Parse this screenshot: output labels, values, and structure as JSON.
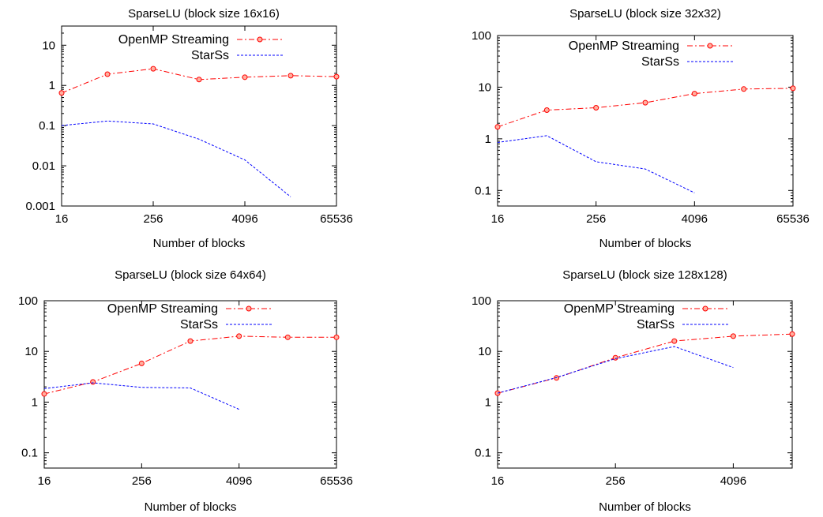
{
  "chart_data": [
    {
      "type": "line",
      "title": "SparseLU (block size 16x16)",
      "xlabel": "Number of blocks",
      "ylabel": "",
      "xscale": "log",
      "yscale": "log",
      "xlim": [
        16,
        65536
      ],
      "ylim": [
        0.001,
        30
      ],
      "xticks": [
        "16",
        "256",
        "4096",
        "65536"
      ],
      "yticks": [
        "0.001",
        "0.01",
        "0.1",
        "1",
        "10"
      ],
      "legend": "top-right",
      "series": [
        {
          "name": "OpenMP Streaming",
          "color": "#ff0000",
          "markers": true,
          "x": [
            16,
            64,
            256,
            1024,
            4096,
            16384,
            65536
          ],
          "y": [
            0.65,
            1.9,
            2.6,
            1.4,
            1.6,
            1.75,
            1.65
          ]
        },
        {
          "name": "StarSs",
          "color": "#0000ff",
          "markers": false,
          "x": [
            16,
            64,
            256,
            1024,
            4096,
            16384
          ],
          "y": [
            0.1,
            0.13,
            0.11,
            0.046,
            0.014,
            0.0017
          ]
        }
      ]
    },
    {
      "type": "line",
      "title": "SparseLU (block size 32x32)",
      "xlabel": "Number of blocks",
      "ylabel": "",
      "xscale": "log",
      "yscale": "log",
      "xlim": [
        16,
        65536
      ],
      "ylim": [
        0.05,
        100
      ],
      "xticks": [
        "16",
        "256",
        "4096",
        "65536"
      ],
      "yticks": [
        "0.1",
        "1",
        "10",
        "100"
      ],
      "legend": "top-right",
      "series": [
        {
          "name": "OpenMP Streaming",
          "color": "#ff0000",
          "markers": true,
          "x": [
            16,
            64,
            256,
            1024,
            4096,
            16384,
            65536
          ],
          "y": [
            1.7,
            3.6,
            4.0,
            5.0,
            7.5,
            9.2,
            9.5
          ]
        },
        {
          "name": "StarSs",
          "color": "#0000ff",
          "markers": false,
          "x": [
            16,
            64,
            256,
            1024,
            4096
          ],
          "y": [
            0.85,
            1.15,
            0.36,
            0.26,
            0.09
          ]
        }
      ]
    },
    {
      "type": "line",
      "title": "SparseLU (block size 64x64)",
      "xlabel": "Number of blocks",
      "ylabel": "",
      "xscale": "log",
      "yscale": "log",
      "xlim": [
        16,
        65536
      ],
      "ylim": [
        0.05,
        100
      ],
      "xticks": [
        "16",
        "256",
        "4096",
        "65536"
      ],
      "yticks": [
        "0.1",
        "1",
        "10",
        "100"
      ],
      "legend": "top-right",
      "series": [
        {
          "name": "OpenMP Streaming",
          "color": "#ff0000",
          "markers": true,
          "x": [
            16,
            64,
            256,
            1024,
            4096,
            16384,
            65536
          ],
          "y": [
            1.45,
            2.5,
            5.8,
            16,
            20,
            19,
            19
          ]
        },
        {
          "name": "StarSs",
          "color": "#0000ff",
          "markers": false,
          "x": [
            16,
            64,
            256,
            1024,
            4096
          ],
          "y": [
            1.85,
            2.4,
            1.95,
            1.9,
            0.72
          ]
        }
      ]
    },
    {
      "type": "line",
      "title": "SparseLU (block size 128x128)",
      "xlabel": "Number of blocks",
      "ylabel": "",
      "xscale": "log",
      "yscale": "log",
      "xlim": [
        16,
        16384
      ],
      "ylim": [
        0.05,
        100
      ],
      "xticks": [
        "16",
        "256",
        "4096"
      ],
      "yticks": [
        "0.1",
        "1",
        "10",
        "100"
      ],
      "legend": "top-right",
      "series": [
        {
          "name": "OpenMP Streaming",
          "color": "#ff0000",
          "markers": true,
          "x": [
            16,
            64,
            256,
            1024,
            4096,
            16384
          ],
          "y": [
            1.5,
            3.0,
            7.5,
            16,
            20,
            22
          ]
        },
        {
          "name": "StarSs",
          "color": "#0000ff",
          "markers": false,
          "x": [
            16,
            64,
            256,
            1024,
            4096
          ],
          "y": [
            1.5,
            3.05,
            7.2,
            12.5,
            4.8
          ]
        }
      ]
    }
  ]
}
